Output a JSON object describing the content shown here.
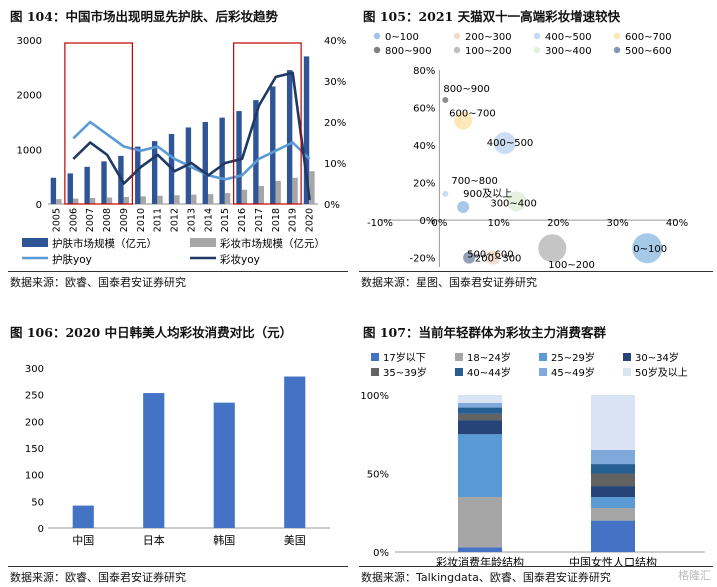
{
  "panels": {
    "p104": {
      "title": "图 104：中国市场出现明显先护肤、后彩妆趋势",
      "source": "数据来源：欧睿、国泰君安证券研究"
    },
    "p105": {
      "title": "图 105：2021 天猫双十一高端彩妆增速较快",
      "source": "数据来源：星图、国泰君安证券研究"
    },
    "p106": {
      "title": "图 106：2020 中日韩美人均彩妆消费对比（元）",
      "source": "数据来源：欧睿、国泰君安证券研究"
    },
    "p107": {
      "title": "图 107：当前年轻群体为彩妆主力消费客群",
      "source": "数据来源：Talkingdata、欧睿、国泰君安证券研究"
    }
  },
  "watermark": "格隆汇",
  "chart_data": [
    {
      "id": "p104",
      "type": "bar+line",
      "categories": [
        "2005",
        "2006",
        "2007",
        "2008",
        "2009",
        "2010",
        "2011",
        "2012",
        "2013",
        "2014",
        "2015",
        "2016",
        "2017",
        "2018",
        "2019",
        "2020"
      ],
      "bar_series": [
        {
          "name": "护肤市场规模（亿元）",
          "color": "#2f5597",
          "values": [
            480,
            560,
            680,
            780,
            880,
            1050,
            1150,
            1280,
            1400,
            1500,
            1580,
            1700,
            1900,
            2150,
            2450,
            2700
          ]
        },
        {
          "name": "彩妆市场规模（亿元）",
          "color": "#a6a6a6",
          "values": [
            90,
            100,
            110,
            120,
            130,
            140,
            150,
            160,
            170,
            180,
            200,
            260,
            330,
            420,
            480,
            600
          ]
        }
      ],
      "line_series": [
        {
          "name": "护肤yoy",
          "color": "#5b9bd5",
          "values": [
            null,
            16,
            20,
            17,
            14,
            13,
            14,
            11,
            9,
            7,
            6,
            7,
            11,
            13,
            15,
            11
          ]
        },
        {
          "name": "彩妆yoy",
          "color": "#1f3864",
          "values": [
            null,
            11,
            15,
            12,
            5,
            9,
            12,
            8,
            10,
            7,
            10,
            11,
            24,
            31,
            32,
            1
          ]
        }
      ],
      "y_left": {
        "min": 0,
        "max": 3000,
        "ticks": [
          "0",
          "1000",
          "2000",
          "3000"
        ]
      },
      "y_right": {
        "min": 0,
        "max": 40,
        "ticks": [
          "0%",
          "10%",
          "20%",
          "30%",
          "40%"
        ]
      },
      "highlight_ranges": [
        [
          "2006",
          "2009"
        ],
        [
          "2016",
          "2019"
        ]
      ]
    },
    {
      "id": "p105",
      "type": "scatter",
      "x_ticks": [
        "-10%",
        "0%",
        "10%",
        "20%",
        "30%",
        "40%"
      ],
      "y_ticks": [
        "-20%",
        "0%",
        "20%",
        "40%",
        "60%",
        "80%"
      ],
      "xlim": [
        -10,
        40
      ],
      "ylim": [
        -25,
        80
      ],
      "legend": [
        {
          "label": "0~100",
          "color": "#9dc3e6"
        },
        {
          "label": "200~300",
          "color": "#f2dcc9"
        },
        {
          "label": "400~500",
          "color": "#c5d9f1"
        },
        {
          "label": "600~700",
          "color": "#fde7b0"
        },
        {
          "label": "800~900",
          "color": "#7f7f7f"
        },
        {
          "label": "100~200",
          "color": "#bfbfbf"
        },
        {
          "label": "300~400",
          "color": "#e2efda"
        },
        {
          "label": "500~600",
          "color": "#8497b0"
        }
      ],
      "points": [
        {
          "label": "800~900",
          "x": 1,
          "y": 64,
          "r": 3,
          "color": "#7f7f7f"
        },
        {
          "label": "600~700",
          "x": 4,
          "y": 53,
          "r": 9,
          "color": "#fde7b0"
        },
        {
          "label": "400~500",
          "x": 11,
          "y": 41,
          "r": 11,
          "color": "#c5d9f1"
        },
        {
          "label": "700~800",
          "x": 1,
          "y": 14,
          "r": 3,
          "color": "#c5d9f1"
        },
        {
          "label": "300~400",
          "x": 13,
          "y": 10,
          "r": 10,
          "color": "#e2efda"
        },
        {
          "label": "900及以上",
          "x": 4,
          "y": 7,
          "r": 6,
          "color": "#9dc3e6"
        },
        {
          "label": "100~200",
          "x": 19,
          "y": -15,
          "r": 14,
          "color": "#bfbfbf"
        },
        {
          "label": "0~100",
          "x": 35,
          "y": -15,
          "r": 15,
          "color": "#9dc3e6"
        },
        {
          "label": "200~300",
          "x": 9,
          "y": -20,
          "r": 7,
          "color": "#f2dcc9"
        },
        {
          "label": "500~600",
          "x": 5,
          "y": -20,
          "r": 6,
          "color": "#8497b0"
        }
      ]
    },
    {
      "id": "p106",
      "type": "bar",
      "categories": [
        "中国",
        "日本",
        "韩国",
        "美国"
      ],
      "values": [
        42,
        253,
        235,
        284
      ],
      "color": "#4472c4",
      "ylim": [
        0,
        300
      ],
      "y_ticks": [
        "0",
        "50",
        "100",
        "150",
        "200",
        "250",
        "300"
      ]
    },
    {
      "id": "p107",
      "type": "stacked-bar",
      "categories": [
        "彩妆消费年龄结构",
        "中国女性人口结构"
      ],
      "y_ticks": [
        "0%",
        "50%",
        "100%"
      ],
      "series": [
        {
          "name": "17岁以下",
          "color": "#4472c4",
          "values": [
            3,
            20
          ]
        },
        {
          "name": "18~24岁",
          "color": "#a5a5a5",
          "values": [
            32,
            8
          ]
        },
        {
          "name": "25~29岁",
          "color": "#5b9bd5",
          "values": [
            40,
            7
          ]
        },
        {
          "name": "30~34岁",
          "color": "#264478",
          "values": [
            9,
            7
          ]
        },
        {
          "name": "35~39岁",
          "color": "#636363",
          "values": [
            4,
            8
          ]
        },
        {
          "name": "40~44岁",
          "color": "#255e91",
          "values": [
            4,
            6
          ]
        },
        {
          "name": "45~49岁",
          "color": "#7fa9db",
          "values": [
            3,
            9
          ]
        },
        {
          "name": "50岁及以上",
          "color": "#dae3f3",
          "values": [
            5,
            35
          ]
        }
      ]
    }
  ]
}
